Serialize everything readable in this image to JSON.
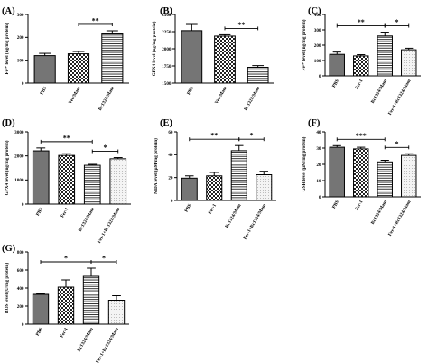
{
  "figure": {
    "background": "#ffffff",
    "ink": "#000000",
    "bar_styles": {
      "solid": "#757575",
      "checker": "checkerboard",
      "hstripe": "horizontal-lines",
      "light": "light-stipple"
    }
  },
  "chart_data": [
    {
      "panel_label": "(A)",
      "type": "bar",
      "ylabel": "Fe²⁺ level (ng/mg protein)",
      "ylim": [
        0,
        300
      ],
      "yticks": [
        "0",
        "100",
        "200",
        "300"
      ],
      "categories": [
        "PBS",
        "Vec/Mam",
        "Rc1324/Mam"
      ],
      "values": [
        120,
        128,
        215
      ],
      "errors": [
        10,
        10,
        14
      ],
      "styles": [
        "solid",
        "checker",
        "hstripe"
      ],
      "significance": [
        {
          "from": 1,
          "to": 2,
          "label": "**"
        }
      ]
    },
    {
      "panel_label": "(B)",
      "type": "bar",
      "ylabel": "GPX4 level (ng/mg protein)",
      "ylim": [
        1500,
        2500
      ],
      "yticks": [
        "1500",
        "1750",
        "2000",
        "2250",
        "2500"
      ],
      "categories": [
        "PBS",
        "Vec/Mam",
        "Rc1324/Mam"
      ],
      "values": [
        2265,
        2185,
        1730
      ],
      "errors": [
        90,
        20,
        25
      ],
      "styles": [
        "solid",
        "checker",
        "hstripe"
      ],
      "significance": [
        {
          "from": 1,
          "to": 2,
          "label": "**"
        }
      ]
    },
    {
      "panel_label": "(C)",
      "type": "bar",
      "ylabel": "Fe²⁺ level (ng/mg protein)",
      "ylim": [
        0,
        400
      ],
      "yticks": [
        "0",
        "100",
        "200",
        "300",
        "400"
      ],
      "categories": [
        "PBS",
        "Fer-1",
        "Rc1324/Mam",
        "Fer-1+Rc1324/Mam"
      ],
      "values": [
        140,
        130,
        260,
        170
      ],
      "errors": [
        15,
        8,
        25,
        10
      ],
      "styles": [
        "solid",
        "checker",
        "hstripe",
        "light"
      ],
      "significance": [
        {
          "from": 0,
          "to": 2,
          "label": "**"
        },
        {
          "from": 2,
          "to": 3,
          "label": "*"
        }
      ]
    },
    {
      "panel_label": "(D)",
      "type": "bar",
      "ylabel": "GPX4 level (ng/mg protein)",
      "ylim": [
        0,
        3000
      ],
      "yticks": [
        "0",
        "1000",
        "2000",
        "3000"
      ],
      "categories": [
        "PBS",
        "Fer-1",
        "Rc1324/Mam",
        "Fer-1+Rc1324/Mam"
      ],
      "values": [
        2210,
        2020,
        1610,
        1880
      ],
      "errors": [
        120,
        70,
        40,
        50
      ],
      "styles": [
        "solid",
        "checker",
        "hstripe",
        "light"
      ],
      "significance": [
        {
          "from": 0,
          "to": 2,
          "label": "**"
        },
        {
          "from": 2,
          "to": 3,
          "label": "*"
        }
      ]
    },
    {
      "panel_label": "(E)",
      "type": "bar",
      "ylabel": "MDA level (μM/mg protein)",
      "ylim": [
        0,
        60
      ],
      "yticks": [
        "0",
        "20",
        "40",
        "60"
      ],
      "categories": [
        "PBS",
        "Fer-1",
        "Rc1324/Mam",
        "Fer-1+Rc1324/Mam"
      ],
      "values": [
        19.5,
        21.5,
        43.5,
        22.5
      ],
      "errors": [
        2,
        3,
        4.5,
        3
      ],
      "styles": [
        "solid",
        "checker",
        "hstripe",
        "light"
      ],
      "significance": [
        {
          "from": 0,
          "to": 2,
          "label": "**"
        },
        {
          "from": 2,
          "to": 3,
          "label": "*"
        }
      ]
    },
    {
      "panel_label": "(F)",
      "type": "bar",
      "ylabel": "GSH level (μM/mg protein)",
      "ylim": [
        0,
        40
      ],
      "yticks": [
        "0",
        "10",
        "20",
        "30",
        "40"
      ],
      "categories": [
        "PBS",
        "Fer-1",
        "Rc1324/Mam",
        "Fer-1+Rc1324/Mam"
      ],
      "values": [
        30.5,
        29.5,
        21.5,
        25.5
      ],
      "errors": [
        1,
        1,
        1,
        1
      ],
      "styles": [
        "solid",
        "checker",
        "hstripe",
        "light"
      ],
      "significance": [
        {
          "from": 0,
          "to": 2,
          "label": "***"
        },
        {
          "from": 2,
          "to": 3,
          "label": "*"
        }
      ]
    },
    {
      "panel_label": "(G)",
      "type": "bar",
      "ylabel": "ROS level (U/mg protein)",
      "ylim": [
        0,
        800
      ],
      "yticks": [
        "0",
        "200",
        "400",
        "600",
        "800"
      ],
      "categories": [
        "PBS",
        "Fer-1",
        "Rc1324/Mam",
        "Fer-1+Rc1324/Mam"
      ],
      "values": [
        330,
        410,
        530,
        265
      ],
      "errors": [
        10,
        80,
        90,
        50
      ],
      "styles": [
        "solid",
        "checker",
        "hstripe",
        "light"
      ],
      "significance": [
        {
          "from": 0,
          "to": 2,
          "label": "*"
        },
        {
          "from": 2,
          "to": 3,
          "label": "*"
        }
      ]
    }
  ]
}
